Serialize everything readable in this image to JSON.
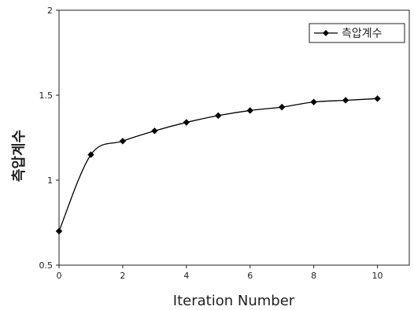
{
  "chart_data": {
    "type": "line",
    "xlabel": "Iteration Number",
    "ylabel": "측압계수",
    "xlim": [
      0,
      11
    ],
    "ylim": [
      0.5,
      2
    ],
    "x_ticks": [
      "0",
      "2",
      "4",
      "6",
      "8",
      "10"
    ],
    "y_ticks": [
      "0.5",
      "1",
      "1.5",
      "2"
    ],
    "legend_position": "top-right",
    "grid": false,
    "series": [
      {
        "name": "측압계수",
        "color": "#000000",
        "marker": "diamond",
        "x": [
          0,
          1,
          2,
          3,
          4,
          5,
          6,
          7,
          8,
          9,
          10
        ],
        "y": [
          0.7,
          1.15,
          1.23,
          1.29,
          1.34,
          1.38,
          1.41,
          1.43,
          1.46,
          1.47,
          1.48
        ]
      }
    ]
  }
}
